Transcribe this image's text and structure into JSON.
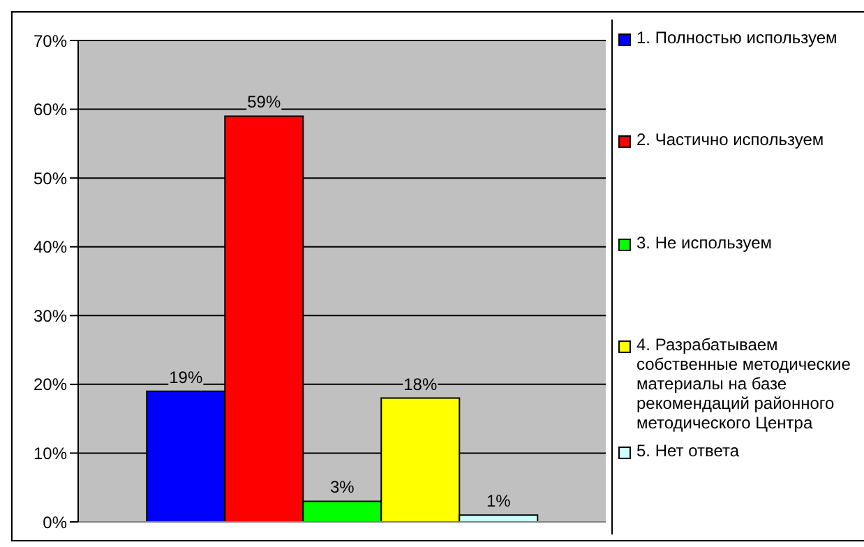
{
  "chart_data": {
    "type": "bar",
    "categories": [
      null
    ],
    "series": [
      {
        "name": "1. Полностью используем",
        "color": "#0000ff",
        "values": [
          19
        ],
        "value_labels": [
          "19%"
        ]
      },
      {
        "name": "2. Частично используем",
        "color": "#ff0000",
        "values": [
          59
        ],
        "value_labels": [
          "59%"
        ]
      },
      {
        "name": "3. Не используем",
        "color": "#00ff00",
        "values": [
          3
        ],
        "value_labels": [
          "3%"
        ]
      },
      {
        "name": "4. Разрабатываем собственные методические материалы на базе рекомендаций районного методического Центра",
        "color": "#ffff00",
        "values": [
          18
        ],
        "value_labels": [
          "18%"
        ]
      },
      {
        "name": "5. Нет ответа",
        "color": "#ccffff",
        "values": [
          1
        ],
        "value_labels": [
          "1%"
        ]
      }
    ],
    "ylim": [
      0,
      70
    ],
    "yticks": [
      {
        "value": 0,
        "label": "0%"
      },
      {
        "value": 10,
        "label": "10%"
      },
      {
        "value": 20,
        "label": "20%"
      },
      {
        "value": 30,
        "label": "30%"
      },
      {
        "value": 40,
        "label": "40%"
      },
      {
        "value": 50,
        "label": "50%"
      },
      {
        "value": 60,
        "label": "60%"
      },
      {
        "value": 70,
        "label": "70%"
      }
    ],
    "grid": "y",
    "legend": "right"
  }
}
